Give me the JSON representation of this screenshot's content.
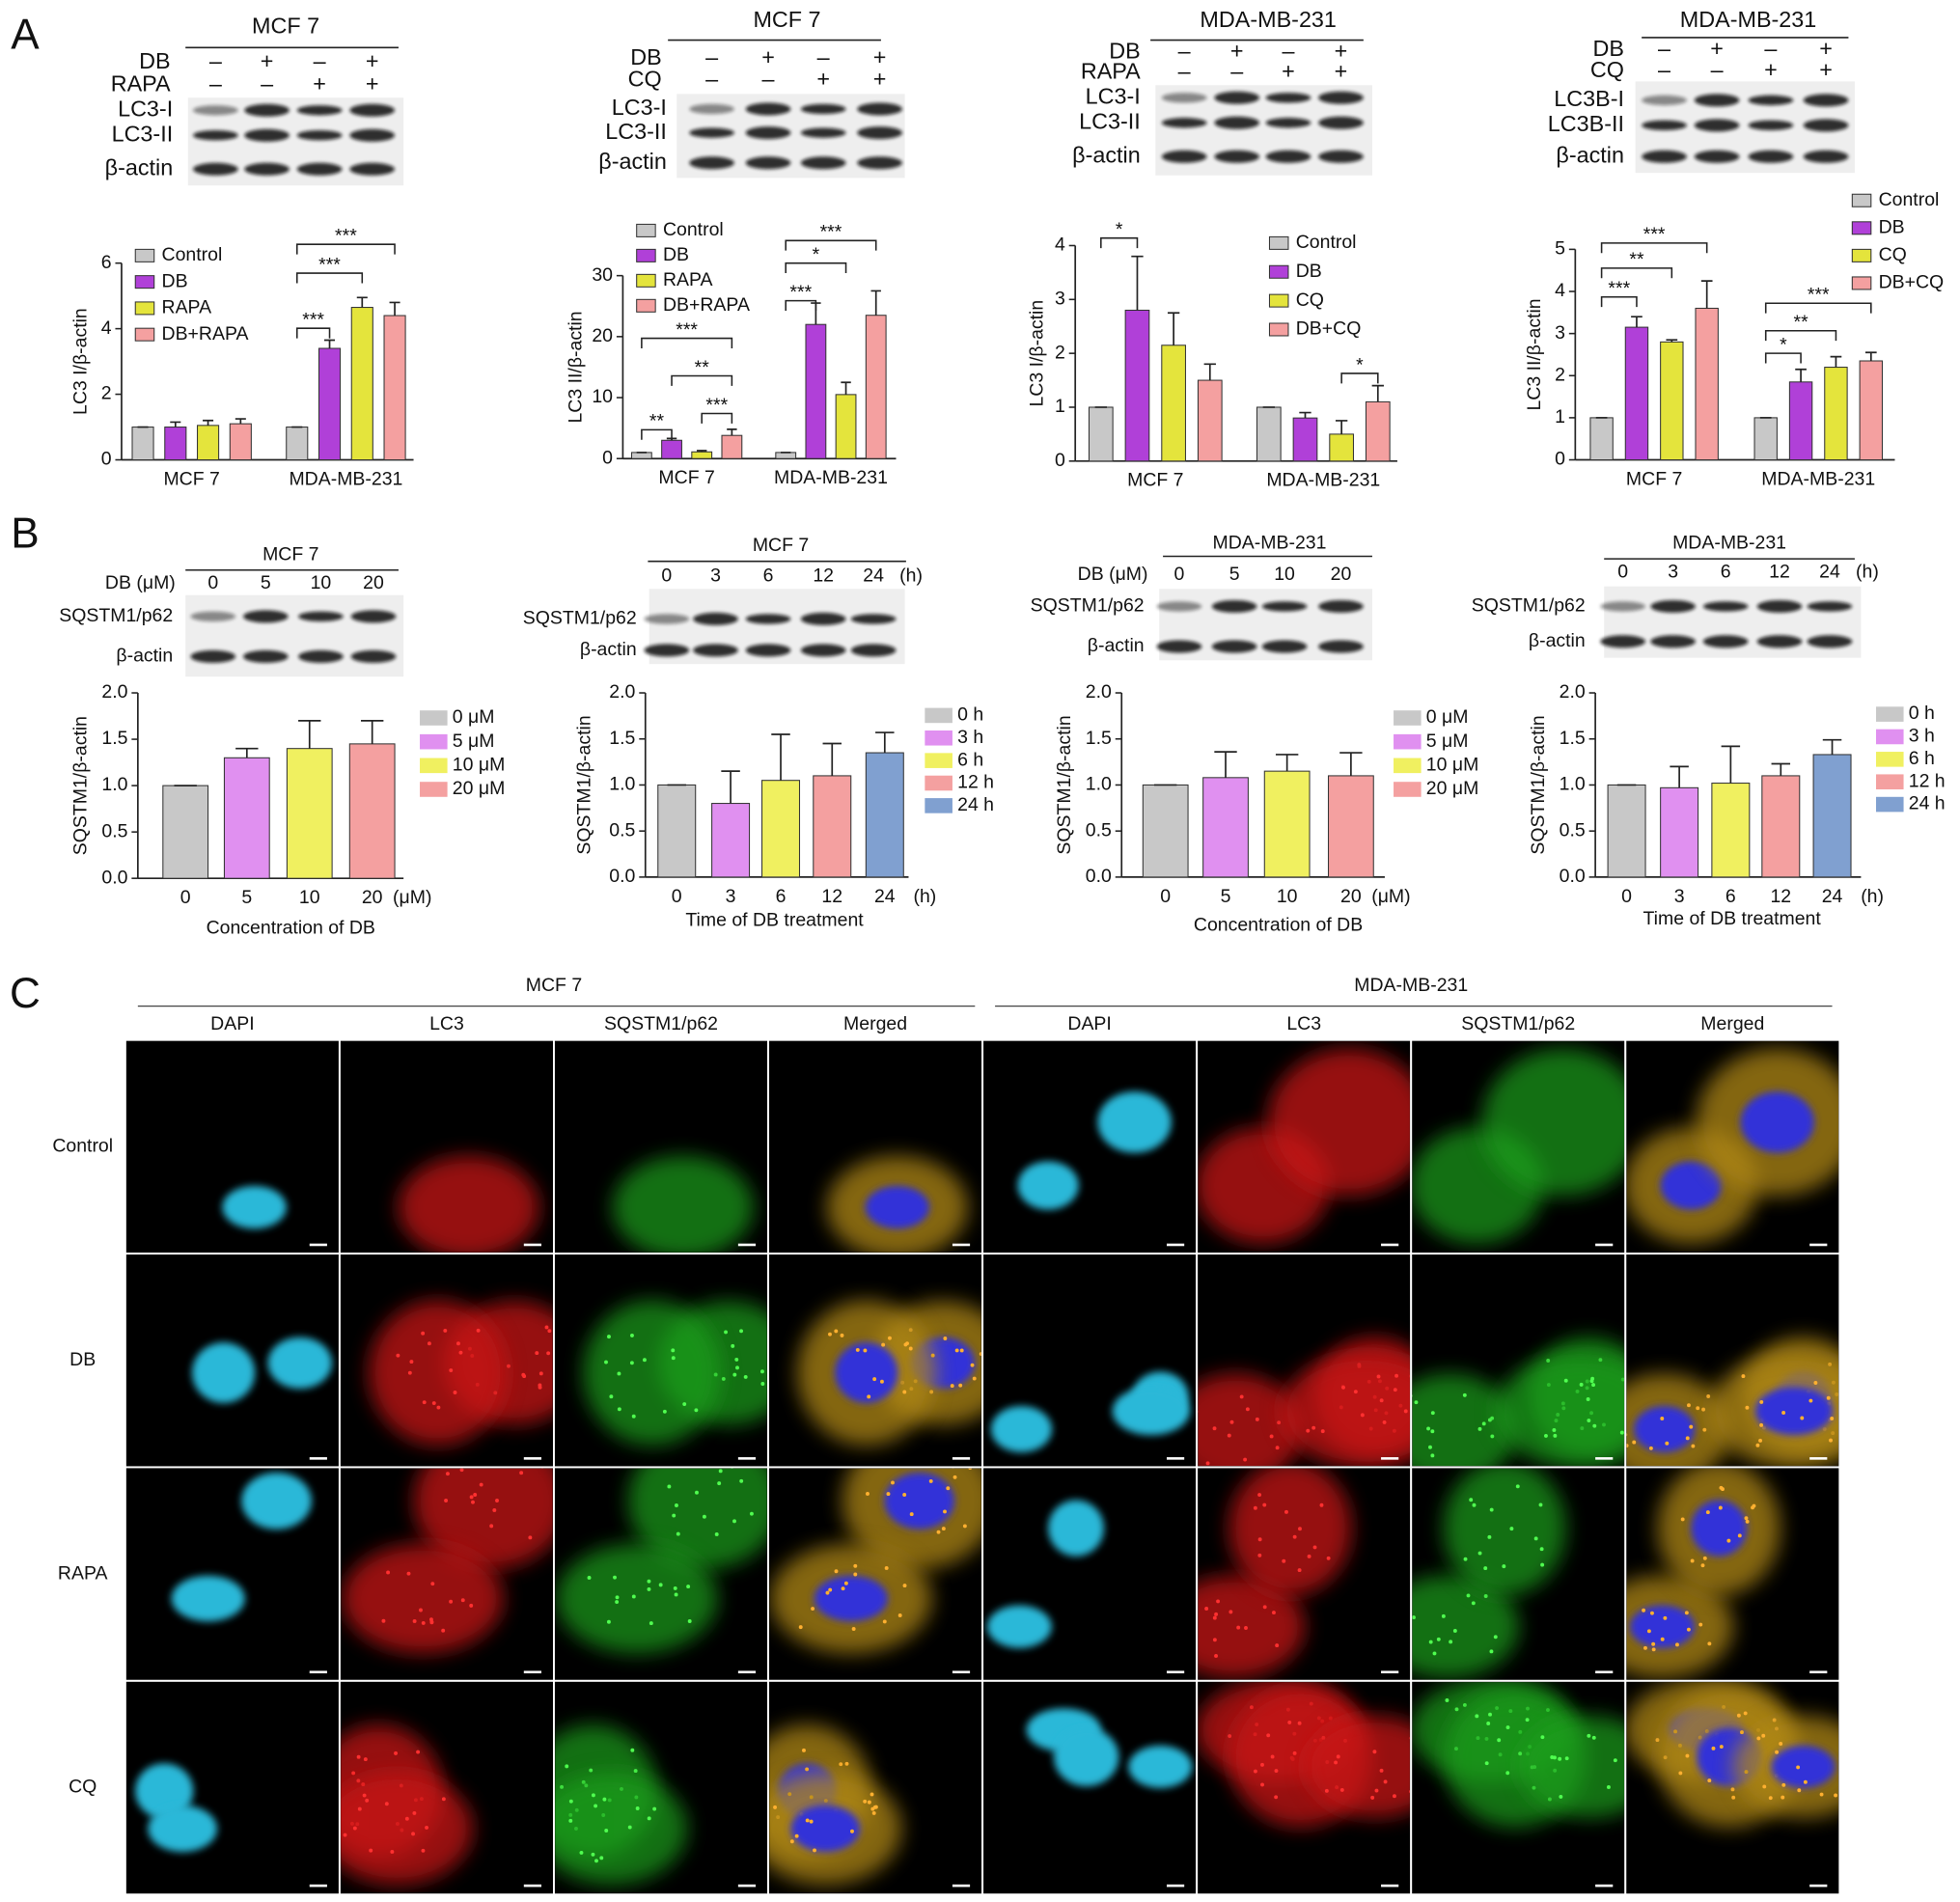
{
  "panels": [
    "A",
    "B",
    "C"
  ],
  "blots": [
    {
      "title": "MCF 7",
      "rows": [
        {
          "label": "DB",
          "marks": [
            "–",
            "+",
            "–",
            "+"
          ]
        },
        {
          "label": "RAPA",
          "marks": [
            "–",
            "–",
            "+",
            "+"
          ]
        }
      ],
      "bands": [
        "LC3-I",
        "LC3-II",
        "β-actin"
      ]
    },
    {
      "title": "MCF 7",
      "rows": [
        {
          "label": "DB",
          "marks": [
            "–",
            "+",
            "–",
            "+"
          ]
        },
        {
          "label": "CQ",
          "marks": [
            "–",
            "–",
            "+",
            "+"
          ]
        }
      ],
      "bands": [
        "LC3-I",
        "LC3-II",
        "β-actin"
      ]
    },
    {
      "title": "MDA-MB-231",
      "rows": [
        {
          "label": "DB",
          "marks": [
            "–",
            "+",
            "–",
            "+"
          ]
        },
        {
          "label": "RAPA",
          "marks": [
            "–",
            "–",
            "+",
            "+"
          ]
        }
      ],
      "bands": [
        "LC3-I",
        "LC3-II",
        "β-actin"
      ]
    },
    {
      "title": "MDA-MB-231",
      "rows": [
        {
          "label": "DB",
          "marks": [
            "–",
            "+",
            "–",
            "+"
          ]
        },
        {
          "label": "CQ",
          "marks": [
            "–",
            "–",
            "+",
            "+"
          ]
        }
      ],
      "bands": [
        "LC3B-I",
        "LC3B-II",
        "β-actin"
      ]
    },
    {
      "title": "MCF 7",
      "rows": [
        {
          "label": "DB (μM)",
          "marks": [
            "0",
            "5",
            "10",
            "20"
          ]
        }
      ],
      "bands": [
        "SQSTM1/p62",
        "β-actin"
      ]
    },
    {
      "title": "MCF 7",
      "rows": [
        {
          "marks": [
            "0",
            "3",
            "6",
            "12",
            "24"
          ],
          "unit": "(h)"
        }
      ],
      "bands": [
        "SQSTM1/p62",
        "β-actin"
      ]
    },
    {
      "title": "MDA-MB-231",
      "rows": [
        {
          "label": "DB (μM)",
          "marks": [
            "0",
            "5",
            "10",
            "20"
          ]
        }
      ],
      "bands": [
        "SQSTM1/p62",
        "β-actin"
      ]
    },
    {
      "title": "MDA-MB-231",
      "rows": [
        {
          "marks": [
            "0",
            "3",
            "6",
            "12",
            "24"
          ],
          "unit": "(h)"
        }
      ],
      "bands": [
        "SQSTM1/p62",
        "β-actin"
      ]
    }
  ],
  "chart_data": [
    {
      "type": "bar",
      "ylabel": "LC3 I/β-actin",
      "categories": [
        "MCF 7",
        "MDA-MB-231"
      ],
      "ylim": [
        0,
        6
      ],
      "yticks": [
        0,
        2,
        4,
        6
      ],
      "series": [
        {
          "name": "Control",
          "color": "#c8c8c8",
          "values": [
            1,
            1
          ],
          "errors": [
            0,
            0
          ]
        },
        {
          "name": "DB",
          "color": "#b040d8",
          "values": [
            1.0,
            3.4
          ],
          "errors": [
            0.15,
            0.25
          ]
        },
        {
          "name": "RAPA",
          "color": "#e4e43c",
          "values": [
            1.05,
            4.65
          ],
          "errors": [
            0.15,
            0.3
          ]
        },
        {
          "name": "DB+RAPA",
          "color": "#f4a0a0",
          "values": [
            1.1,
            4.4
          ],
          "errors": [
            0.15,
            0.4
          ]
        }
      ],
      "annotations": [
        "***",
        "***",
        "***"
      ]
    },
    {
      "type": "bar",
      "ylabel": "LC3 II/β-actin",
      "categories": [
        "MCF 7",
        "MDA-MB-231"
      ],
      "ylim": [
        0,
        30
      ],
      "yticks": [
        0,
        10,
        20,
        30
      ],
      "series": [
        {
          "name": "Control",
          "color": "#c8c8c8",
          "values": [
            1,
            1
          ],
          "errors": [
            0,
            0
          ]
        },
        {
          "name": "DB",
          "color": "#b040d8",
          "values": [
            3,
            22
          ],
          "errors": [
            0.3,
            3.5
          ]
        },
        {
          "name": "RAPA",
          "color": "#e4e43c",
          "values": [
            1.1,
            10.5
          ],
          "errors": [
            0.2,
            2
          ]
        },
        {
          "name": "DB+RAPA",
          "color": "#f4a0a0",
          "values": [
            3.8,
            23.5
          ],
          "errors": [
            1,
            4
          ]
        }
      ],
      "annotations": [
        "**",
        "***",
        "**",
        "***",
        "***",
        "*",
        "***"
      ]
    },
    {
      "type": "bar",
      "ylabel": "LC3 I/β-actin",
      "categories": [
        "MCF 7",
        "MDA-MB-231"
      ],
      "ylim": [
        0,
        4
      ],
      "yticks": [
        0,
        1,
        2,
        3,
        4
      ],
      "series": [
        {
          "name": "Control",
          "color": "#c8c8c8",
          "values": [
            1,
            1
          ],
          "errors": [
            0,
            0
          ]
        },
        {
          "name": "DB",
          "color": "#b040d8",
          "values": [
            2.8,
            0.8
          ],
          "errors": [
            1.0,
            0.1
          ]
        },
        {
          "name": "CQ",
          "color": "#e4e43c",
          "values": [
            2.15,
            0.5
          ],
          "errors": [
            0.6,
            0.25
          ]
        },
        {
          "name": "DB+CQ",
          "color": "#f4a0a0",
          "values": [
            1.5,
            1.1
          ],
          "errors": [
            0.3,
            0.3
          ]
        }
      ],
      "annotations": [
        "*",
        "*"
      ]
    },
    {
      "type": "bar",
      "ylabel": "LC3 II/β-actin",
      "categories": [
        "MCF 7",
        "MDA-MB-231"
      ],
      "ylim": [
        0,
        5
      ],
      "yticks": [
        0,
        1,
        2,
        3,
        4,
        5
      ],
      "series": [
        {
          "name": "Control",
          "color": "#c8c8c8",
          "values": [
            1,
            1
          ],
          "errors": [
            0,
            0
          ]
        },
        {
          "name": "DB",
          "color": "#b040d8",
          "values": [
            3.15,
            1.85
          ],
          "errors": [
            0.25,
            0.3
          ]
        },
        {
          "name": "CQ",
          "color": "#e4e43c",
          "values": [
            2.8,
            2.2
          ],
          "errors": [
            0.05,
            0.25
          ]
        },
        {
          "name": "DB+CQ",
          "color": "#f4a0a0",
          "values": [
            3.6,
            2.35
          ],
          "errors": [
            0.65,
            0.2
          ]
        }
      ],
      "annotations": [
        "***",
        "**",
        "***",
        "*",
        "**",
        "***"
      ]
    },
    {
      "type": "bar",
      "ylabel": "SQSTM1/β-actin",
      "xlabel": "Concentration of DB",
      "x_unit": "(μM)",
      "categories": [
        "0",
        "5",
        "10",
        "20"
      ],
      "values": [
        1,
        1.3,
        1.4,
        1.45
      ],
      "errors": [
        0,
        0.1,
        0.3,
        0.25
      ],
      "colors": [
        "#c8c8c8",
        "#e090f0",
        "#f0f060",
        "#f4a0a0"
      ],
      "legend": [
        "0 μM",
        "5 μM",
        "10 μM",
        "20 μM"
      ],
      "ylim": [
        0,
        2
      ],
      "yticks": [
        {
          "value": 0,
          "label": "0.0"
        },
        {
          "value": 0.5,
          "label": "0.5"
        },
        {
          "value": 1,
          "label": "1.0"
        },
        {
          "value": 1.5,
          "label": "1.5"
        },
        {
          "value": 2,
          "label": "2.0"
        }
      ]
    },
    {
      "type": "bar",
      "ylabel": "SQSTM1/β-actin",
      "xlabel": "Time of DB treatment",
      "x_unit": "(h)",
      "categories": [
        "0",
        "3",
        "6",
        "12",
        "24"
      ],
      "values": [
        1,
        0.8,
        1.05,
        1.1,
        1.35
      ],
      "errors": [
        0,
        0.35,
        0.5,
        0.35,
        0.22
      ],
      "colors": [
        "#c8c8c8",
        "#e090f0",
        "#f0f060",
        "#f4a0a0",
        "#80a0d0"
      ],
      "legend": [
        "0 h",
        "3 h",
        "6 h",
        "12 h",
        "24 h"
      ],
      "ylim": [
        0,
        2
      ],
      "yticks": [
        {
          "value": 0,
          "label": "0.0"
        },
        {
          "value": 0.5,
          "label": "0.5"
        },
        {
          "value": 1,
          "label": "1.0"
        },
        {
          "value": 1.5,
          "label": "1.5"
        },
        {
          "value": 2,
          "label": "2.0"
        }
      ]
    },
    {
      "type": "bar",
      "ylabel": "SQSTM1/β-actin",
      "xlabel": "Concentration of DB",
      "x_unit": "(μM)",
      "categories": [
        "0",
        "5",
        "10",
        "20"
      ],
      "values": [
        1,
        1.08,
        1.15,
        1.1
      ],
      "errors": [
        0,
        0.28,
        0.18,
        0.25
      ],
      "colors": [
        "#c8c8c8",
        "#e090f0",
        "#f0f060",
        "#f4a0a0"
      ],
      "legend": [
        "0 μM",
        "5 μM",
        "10 μM",
        "20 μM"
      ],
      "ylim": [
        0,
        2
      ],
      "yticks": [
        {
          "value": 0,
          "label": "0.0"
        },
        {
          "value": 0.5,
          "label": "0.5"
        },
        {
          "value": 1,
          "label": "1.0"
        },
        {
          "value": 1.5,
          "label": "1.5"
        },
        {
          "value": 2,
          "label": "2.0"
        }
      ]
    },
    {
      "type": "bar",
      "ylabel": "SQSTM1/β-actin",
      "xlabel": "Time of DB treatment",
      "x_unit": "(h)",
      "categories": [
        "0",
        "3",
        "6",
        "12",
        "24"
      ],
      "values": [
        1,
        0.97,
        1.02,
        1.1,
        1.33
      ],
      "errors": [
        0,
        0.23,
        0.4,
        0.13,
        0.16
      ],
      "colors": [
        "#c8c8c8",
        "#e090f0",
        "#f0f060",
        "#f4a0a0",
        "#80a0d0"
      ],
      "legend": [
        "0 h",
        "3 h",
        "6 h",
        "12 h",
        "24 h"
      ],
      "ylim": [
        0,
        2
      ],
      "yticks": [
        {
          "value": 0,
          "label": "0.0"
        },
        {
          "value": 0.5,
          "label": "0.5"
        },
        {
          "value": 1,
          "label": "1.0"
        },
        {
          "value": 1.5,
          "label": "1.5"
        },
        {
          "value": 2,
          "label": "2.0"
        }
      ]
    }
  ],
  "microscopy": {
    "groups": [
      {
        "title": "MCF 7",
        "channels": [
          "DAPI",
          "LC3",
          "SQSTM1/p62",
          "Merged"
        ]
      },
      {
        "title": "MDA-MB-231",
        "channels": [
          "DAPI",
          "LC3",
          "SQSTM1/p62",
          "Merged"
        ]
      }
    ],
    "rows": [
      "Control",
      "DB",
      "RAPA",
      "CQ"
    ]
  }
}
